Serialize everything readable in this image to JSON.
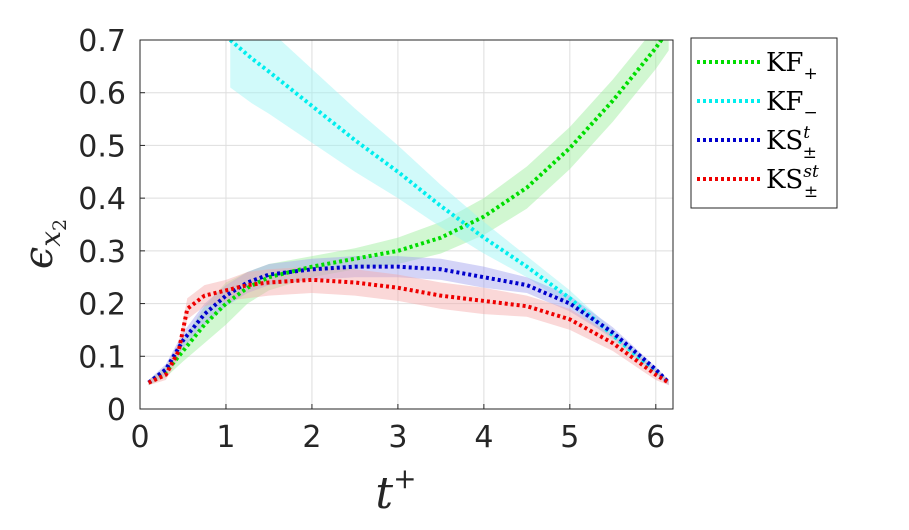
{
  "chart_data": {
    "type": "line",
    "xlabel": "t",
    "xlabel_sup": "+",
    "ylabel": "ϵ",
    "ylabel_sub": "x",
    "ylabel_subsub": "2",
    "xlim": [
      0,
      6.2
    ],
    "ylim": [
      0,
      0.7
    ],
    "xticks": [
      "0",
      "1",
      "2",
      "3",
      "4",
      "5",
      "6"
    ],
    "yticks": [
      "0",
      "0.1",
      "0.2",
      "0.3",
      "0.4",
      "0.5",
      "0.6",
      "0.7"
    ],
    "grid": true,
    "legend_position": "outside-right",
    "line_style": "dotted",
    "series": [
      {
        "name": "KF",
        "name_sub": "+",
        "name_sup": "",
        "color": "#00dd00",
        "band_color": "#99ee99",
        "x": [
          0.1,
          0.3,
          0.5,
          0.75,
          1.0,
          1.25,
          1.5,
          2.0,
          2.5,
          3.0,
          3.5,
          4.0,
          4.5,
          5.0,
          5.5,
          6.0,
          6.15
        ],
        "y": [
          0.05,
          0.07,
          0.11,
          0.16,
          0.2,
          0.23,
          0.25,
          0.27,
          0.285,
          0.3,
          0.325,
          0.365,
          0.42,
          0.495,
          0.585,
          0.685,
          0.72
        ],
        "band": [
          0.005,
          0.01,
          0.02,
          0.035,
          0.04,
          0.03,
          0.025,
          0.02,
          0.02,
          0.025,
          0.03,
          0.035,
          0.04,
          0.04,
          0.04,
          0.04,
          0.04
        ]
      },
      {
        "name": "KF",
        "name_sub": "−",
        "name_sup": "",
        "color": "#00eeee",
        "band_color": "#99f5f5",
        "x": [
          1.05,
          1.3,
          1.5,
          2.0,
          2.5,
          3.0,
          3.5,
          4.0,
          4.5,
          5.0,
          5.5,
          6.0,
          6.15
        ],
        "y": [
          0.7,
          0.665,
          0.64,
          0.575,
          0.51,
          0.45,
          0.385,
          0.325,
          0.27,
          0.21,
          0.14,
          0.07,
          0.05
        ],
        "band": [
          0.09,
          0.085,
          0.08,
          0.07,
          0.06,
          0.05,
          0.04,
          0.03,
          0.02,
          0.015,
          0.01,
          0.005,
          0.005
        ]
      },
      {
        "name": "KS",
        "name_sub": "±",
        "name_sup": "t",
        "color": "#0000cc",
        "band_color": "#a0a0ee",
        "x": [
          0.1,
          0.3,
          0.5,
          0.75,
          1.0,
          1.25,
          1.5,
          2.0,
          2.5,
          3.0,
          3.5,
          4.0,
          4.5,
          5.0,
          5.5,
          6.0,
          6.15
        ],
        "y": [
          0.05,
          0.075,
          0.13,
          0.18,
          0.215,
          0.24,
          0.255,
          0.265,
          0.27,
          0.27,
          0.265,
          0.25,
          0.235,
          0.2,
          0.145,
          0.075,
          0.05
        ],
        "band": [
          0.005,
          0.01,
          0.015,
          0.02,
          0.02,
          0.02,
          0.02,
          0.02,
          0.02,
          0.02,
          0.02,
          0.02,
          0.015,
          0.015,
          0.01,
          0.005,
          0.005
        ]
      },
      {
        "name": "KS",
        "name_sub": "±",
        "name_sup": "st",
        "color": "#ee0000",
        "band_color": "#f5a8a8",
        "x": [
          0.1,
          0.3,
          0.45,
          0.55,
          0.75,
          1.0,
          1.25,
          1.5,
          2.0,
          2.5,
          3.0,
          3.5,
          4.0,
          4.5,
          5.0,
          5.5,
          6.0,
          6.15
        ],
        "y": [
          0.05,
          0.065,
          0.11,
          0.19,
          0.215,
          0.225,
          0.235,
          0.24,
          0.245,
          0.24,
          0.23,
          0.215,
          0.205,
          0.195,
          0.17,
          0.125,
          0.065,
          0.05
        ],
        "band": [
          0.005,
          0.01,
          0.015,
          0.02,
          0.02,
          0.02,
          0.025,
          0.025,
          0.025,
          0.025,
          0.025,
          0.025,
          0.025,
          0.02,
          0.02,
          0.015,
          0.01,
          0.005
        ]
      }
    ]
  }
}
